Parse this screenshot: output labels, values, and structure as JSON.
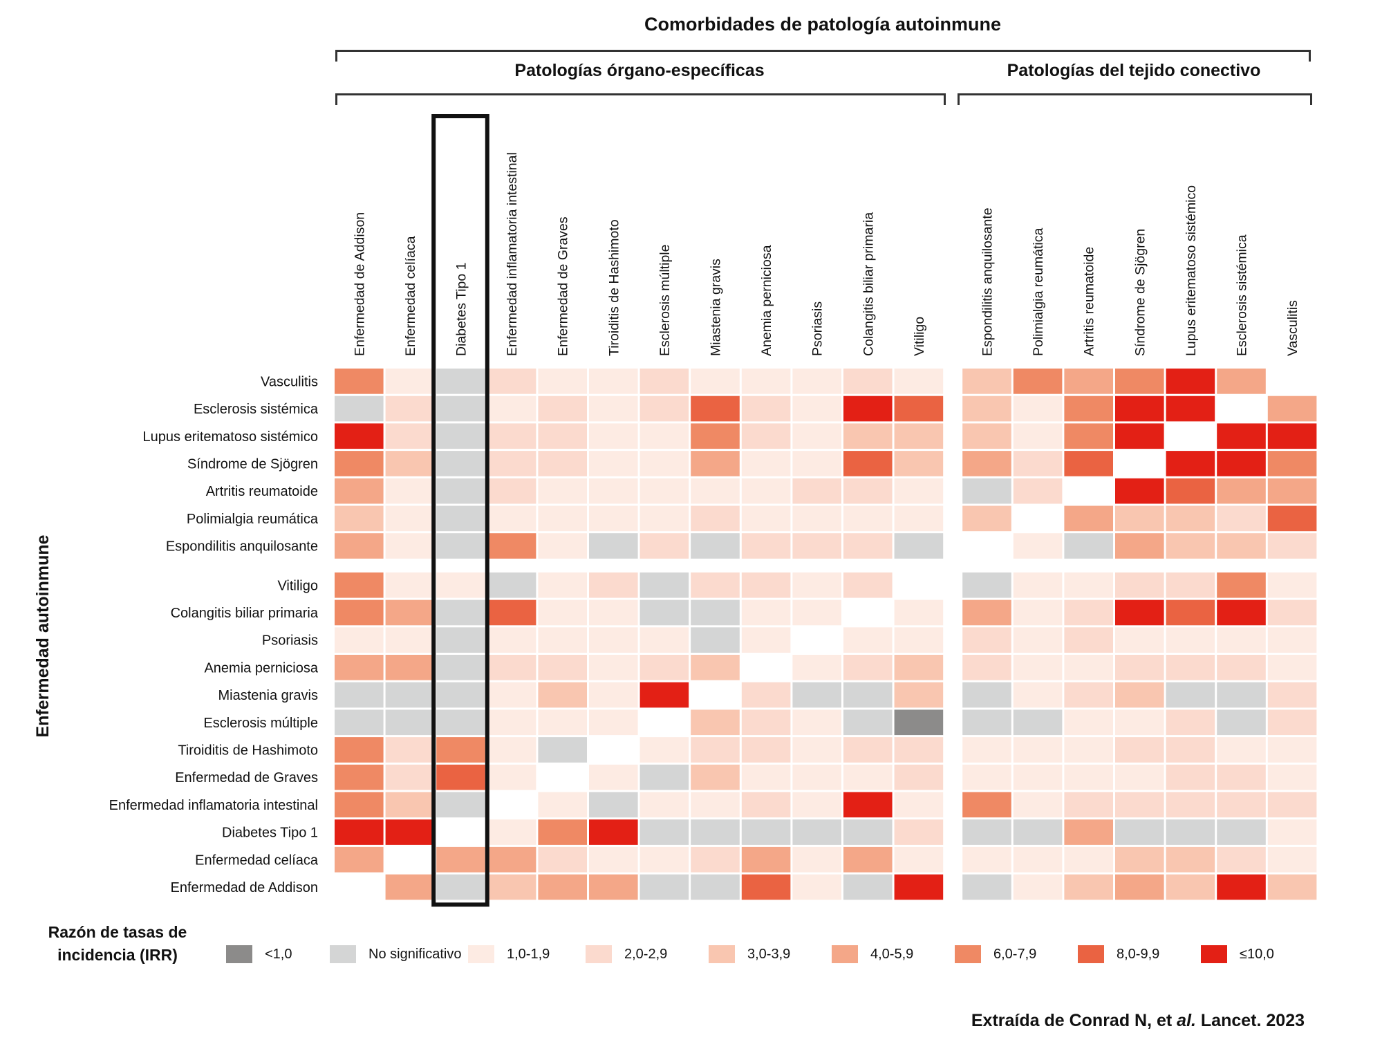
{
  "chart_data": {
    "type": "heatmap",
    "title": "Comorbidades de patología autoinmune",
    "ylabel": "Enfermedad autoinmune",
    "column_groups": [
      {
        "name": "Patologías órgano-específicas",
        "columns": 12
      },
      {
        "name": "Patologías del tejido conectivo",
        "columns": 7
      }
    ],
    "columns": [
      "Enfermedad de Addison",
      "Enfermedad celíaca",
      "Diabetes Tipo 1",
      "Enfermedad inflamatoria intestinal",
      "Enfermedad de Graves",
      "Tiroiditis de Hashimoto",
      "Esclerosis múltiple",
      "Miastenia gravis",
      "Anemia perniciosa",
      "Psoriasis",
      "Colangitis biliar primaria",
      "Vitiligo",
      "Espondilitis anquilosante",
      "Polimialgia reumática",
      "Artritis reumatoide",
      "Síndrome de Sjögren",
      "Lupus eritematoso sistémico",
      "Esclerosis sistémica",
      "Vasculitis"
    ],
    "highlighted_column": "Diabetes Tipo 1",
    "row_groups": [
      {
        "rows": 7
      },
      {
        "rows": 12
      }
    ],
    "rows": [
      "Vasculitis",
      "Esclerosis sistémica",
      "Lupus eritematoso sistémico",
      "Síndrome de Sjögren",
      "Artritis reumatoide",
      "Polimialgia reumática",
      "Espondilitis anquilosante",
      "Vitiligo",
      "Colangitis biliar primaria",
      "Psoriasis",
      "Anemia perniciosa",
      "Miastenia gravis",
      "Esclerosis múltiple",
      "Tiroiditis de Hashimoto",
      "Enfermedad de Graves",
      "Enfermedad inflamatoria intestinal",
      "Diabetes Tipo 1",
      "Enfermedad celíaca",
      "Enfermedad de Addison"
    ],
    "legend_title": "Razón de tasas de incidencia (IRR)",
    "categories": [
      {
        "label": "<1,0",
        "color": "#8c8b8a"
      },
      {
        "label": "No significativo",
        "color": "#d4d5d5"
      },
      {
        "label": "1,0-1,9",
        "color": "#fdebe3"
      },
      {
        "label": "2,0-2,9",
        "color": "#fbdace"
      },
      {
        "label": "3,0-3,9",
        "color": "#f9c6b0"
      },
      {
        "label": "4,0-5,9",
        "color": "#f4a788"
      },
      {
        "label": "6,0-7,9",
        "color": "#ef8964"
      },
      {
        "label": "8,0-9,9",
        "color": "#ea6342"
      },
      {
        "label": "≤10,0",
        "color": "#e32015"
      }
    ],
    "values_note": "category index per cell (0..8 = legend order); null = same disease (empty)",
    "values": [
      [
        6,
        2,
        1,
        3,
        2,
        2,
        3,
        2,
        2,
        2,
        3,
        2,
        4,
        6,
        5,
        6,
        8,
        5,
        null
      ],
      [
        1,
        3,
        1,
        2,
        3,
        2,
        3,
        7,
        3,
        2,
        8,
        7,
        4,
        2,
        6,
        8,
        8,
        null,
        5
      ],
      [
        8,
        3,
        1,
        3,
        3,
        2,
        2,
        6,
        3,
        2,
        4,
        4,
        4,
        2,
        6,
        8,
        null,
        8,
        8
      ],
      [
        6,
        4,
        1,
        3,
        3,
        2,
        2,
        5,
        2,
        2,
        7,
        4,
        5,
        3,
        7,
        null,
        8,
        8,
        6
      ],
      [
        5,
        2,
        1,
        3,
        2,
        2,
        2,
        2,
        2,
        3,
        3,
        2,
        1,
        3,
        null,
        8,
        7,
        5,
        5
      ],
      [
        4,
        2,
        1,
        2,
        2,
        2,
        2,
        3,
        2,
        2,
        2,
        2,
        4,
        null,
        5,
        4,
        4,
        3,
        7
      ],
      [
        5,
        2,
        1,
        6,
        2,
        1,
        3,
        1,
        3,
        3,
        3,
        1,
        null,
        2,
        1,
        5,
        4,
        4,
        3
      ],
      [
        6,
        2,
        2,
        1,
        2,
        3,
        1,
        3,
        3,
        2,
        3,
        null,
        1,
        2,
        2,
        3,
        3,
        6,
        2
      ],
      [
        6,
        5,
        1,
        7,
        2,
        2,
        1,
        1,
        2,
        2,
        null,
        2,
        5,
        2,
        3,
        8,
        7,
        8,
        3
      ],
      [
        2,
        2,
        1,
        2,
        2,
        2,
        2,
        1,
        2,
        null,
        2,
        2,
        3,
        2,
        3,
        2,
        2,
        2,
        2
      ],
      [
        5,
        5,
        1,
        3,
        3,
        2,
        3,
        4,
        null,
        2,
        3,
        4,
        3,
        2,
        2,
        3,
        3,
        3,
        2
      ],
      [
        1,
        1,
        1,
        2,
        4,
        2,
        8,
        null,
        3,
        1,
        1,
        4,
        1,
        2,
        3,
        4,
        1,
        1,
        3
      ],
      [
        1,
        1,
        1,
        2,
        2,
        2,
        null,
        4,
        3,
        2,
        1,
        0,
        1,
        1,
        2,
        2,
        3,
        1,
        3
      ],
      [
        6,
        3,
        6,
        2,
        1,
        null,
        2,
        3,
        3,
        2,
        3,
        3,
        2,
        2,
        2,
        3,
        3,
        2,
        2
      ],
      [
        6,
        3,
        7,
        2,
        null,
        2,
        1,
        4,
        2,
        2,
        2,
        3,
        2,
        2,
        2,
        2,
        3,
        3,
        2
      ],
      [
        6,
        4,
        1,
        null,
        2,
        1,
        2,
        2,
        3,
        2,
        8,
        2,
        6,
        2,
        3,
        3,
        3,
        3,
        3
      ],
      [
        8,
        8,
        null,
        2,
        6,
        8,
        1,
        1,
        1,
        1,
        1,
        3,
        1,
        1,
        5,
        1,
        1,
        1,
        2
      ],
      [
        5,
        null,
        5,
        5,
        3,
        2,
        2,
        3,
        5,
        2,
        5,
        2,
        2,
        2,
        2,
        4,
        4,
        3,
        2
      ],
      [
        null,
        5,
        1,
        4,
        5,
        5,
        1,
        1,
        7,
        2,
        1,
        8,
        1,
        2,
        4,
        5,
        4,
        8,
        4
      ]
    ]
  },
  "source": {
    "prefix": "Extraída de Conrad N, et ",
    "italic": "al.",
    "suffix": " Lancet. 2023"
  }
}
